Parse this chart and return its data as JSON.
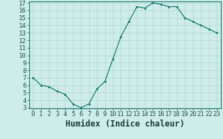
{
  "x": [
    0,
    1,
    2,
    3,
    4,
    5,
    6,
    7,
    8,
    9,
    10,
    11,
    12,
    13,
    14,
    15,
    16,
    17,
    18,
    19,
    20,
    21,
    22,
    23
  ],
  "y": [
    7.0,
    6.0,
    5.8,
    5.2,
    4.8,
    3.5,
    3.0,
    3.5,
    5.5,
    6.5,
    9.5,
    12.5,
    14.5,
    16.5,
    16.3,
    17.0,
    16.8,
    16.5,
    16.5,
    15.0,
    14.5,
    14.0,
    13.5,
    13.0
  ],
  "xlabel": "Humidex (Indice chaleur)",
  "ylim_min": 3,
  "ylim_max": 17,
  "xlim_min": -0.5,
  "xlim_max": 23.5,
  "yticks": [
    3,
    4,
    5,
    6,
    7,
    8,
    9,
    10,
    11,
    12,
    13,
    14,
    15,
    16,
    17
  ],
  "xtick_labels": [
    "0",
    "1",
    "2",
    "3",
    "4",
    "5",
    "6",
    "7",
    "8",
    "9",
    "10",
    "11",
    "12",
    "13",
    "14",
    "15",
    "16",
    "17",
    "18",
    "19",
    "20",
    "21",
    "22",
    "23"
  ],
  "line_color": "#1a7a6e",
  "marker_color": "#1a7a6e",
  "bg_color": "#ceecea",
  "grid_color": "#aed4d0",
  "spine_color": "#1a7a6e",
  "tick_color": "#1a5050",
  "xlabel_color": "#1a3a3a",
  "tick_fontsize": 6.5,
  "xlabel_fontsize": 8.5
}
